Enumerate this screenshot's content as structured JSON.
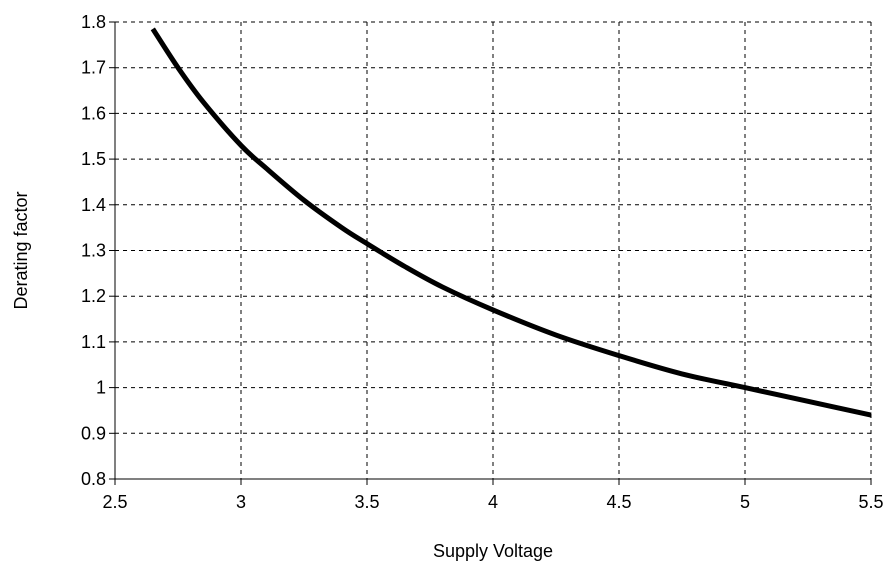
{
  "chart_data": {
    "type": "line",
    "title": "",
    "xlabel": "Supply Voltage",
    "ylabel": "Derating factor",
    "xlim": [
      2.5,
      5.5
    ],
    "ylim": [
      0.8,
      1.8
    ],
    "grid": true,
    "grid_style": "dashed",
    "x_ticks": [
      2.5,
      3,
      3.5,
      4,
      4.5,
      5,
      5.5
    ],
    "x_tick_labels": [
      "2.5",
      "3",
      "3.5",
      "4",
      "4.5",
      "5",
      "5.5"
    ],
    "y_ticks": [
      0.8,
      0.9,
      1.0,
      1.1,
      1.2,
      1.3,
      1.4,
      1.5,
      1.6,
      1.7,
      1.8
    ],
    "y_tick_labels": [
      "0.8",
      "0.9",
      "1",
      "1.1",
      "1.2",
      "1.3",
      "1.4",
      "1.5",
      "1.6",
      "1.7",
      "1.8"
    ],
    "line_color": "#000000",
    "series": [
      {
        "x": [
          2.65,
          2.75,
          2.85,
          3.0,
          3.1,
          3.25,
          3.4,
          3.5,
          3.65,
          3.8,
          4.0,
          4.25,
          4.5,
          4.75,
          5.0,
          5.25,
          5.5
        ],
        "values": [
          1.785,
          1.7,
          1.625,
          1.53,
          1.48,
          1.41,
          1.35,
          1.315,
          1.265,
          1.22,
          1.17,
          1.115,
          1.07,
          1.03,
          1.0,
          0.97,
          0.94
        ]
      }
    ]
  }
}
